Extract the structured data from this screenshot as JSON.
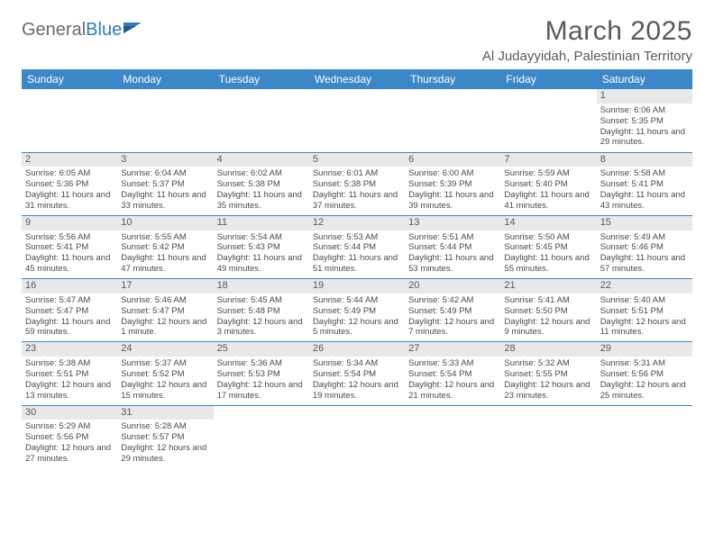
{
  "logo": {
    "text1": "General",
    "text2": "Blue"
  },
  "title": "March 2025",
  "subtitle": "Al Judayyidah, Palestinian Territory",
  "colors": {
    "header_bg": "#3b87c8",
    "header_text": "#ffffff",
    "daynum_bg": "#e9e9e9",
    "border": "#3b87c8",
    "text": "#4a4a4a",
    "logo_gray": "#6b6b6b",
    "logo_blue": "#2d7cc1"
  },
  "weekdays": [
    "Sunday",
    "Monday",
    "Tuesday",
    "Wednesday",
    "Thursday",
    "Friday",
    "Saturday"
  ],
  "cells": [
    [
      null,
      null,
      null,
      null,
      null,
      null,
      {
        "n": "1",
        "sr": "6:06 AM",
        "ss": "5:35 PM",
        "dl": "11 hours and 29 minutes."
      }
    ],
    [
      {
        "n": "2",
        "sr": "6:05 AM",
        "ss": "5:36 PM",
        "dl": "11 hours and 31 minutes."
      },
      {
        "n": "3",
        "sr": "6:04 AM",
        "ss": "5:37 PM",
        "dl": "11 hours and 33 minutes."
      },
      {
        "n": "4",
        "sr": "6:02 AM",
        "ss": "5:38 PM",
        "dl": "11 hours and 35 minutes."
      },
      {
        "n": "5",
        "sr": "6:01 AM",
        "ss": "5:38 PM",
        "dl": "11 hours and 37 minutes."
      },
      {
        "n": "6",
        "sr": "6:00 AM",
        "ss": "5:39 PM",
        "dl": "11 hours and 39 minutes."
      },
      {
        "n": "7",
        "sr": "5:59 AM",
        "ss": "5:40 PM",
        "dl": "11 hours and 41 minutes."
      },
      {
        "n": "8",
        "sr": "5:58 AM",
        "ss": "5:41 PM",
        "dl": "11 hours and 43 minutes."
      }
    ],
    [
      {
        "n": "9",
        "sr": "5:56 AM",
        "ss": "5:41 PM",
        "dl": "11 hours and 45 minutes."
      },
      {
        "n": "10",
        "sr": "5:55 AM",
        "ss": "5:42 PM",
        "dl": "11 hours and 47 minutes."
      },
      {
        "n": "11",
        "sr": "5:54 AM",
        "ss": "5:43 PM",
        "dl": "11 hours and 49 minutes."
      },
      {
        "n": "12",
        "sr": "5:53 AM",
        "ss": "5:44 PM",
        "dl": "11 hours and 51 minutes."
      },
      {
        "n": "13",
        "sr": "5:51 AM",
        "ss": "5:44 PM",
        "dl": "11 hours and 53 minutes."
      },
      {
        "n": "14",
        "sr": "5:50 AM",
        "ss": "5:45 PM",
        "dl": "11 hours and 55 minutes."
      },
      {
        "n": "15",
        "sr": "5:49 AM",
        "ss": "5:46 PM",
        "dl": "11 hours and 57 minutes."
      }
    ],
    [
      {
        "n": "16",
        "sr": "5:47 AM",
        "ss": "5:47 PM",
        "dl": "11 hours and 59 minutes."
      },
      {
        "n": "17",
        "sr": "5:46 AM",
        "ss": "5:47 PM",
        "dl": "12 hours and 1 minute."
      },
      {
        "n": "18",
        "sr": "5:45 AM",
        "ss": "5:48 PM",
        "dl": "12 hours and 3 minutes."
      },
      {
        "n": "19",
        "sr": "5:44 AM",
        "ss": "5:49 PM",
        "dl": "12 hours and 5 minutes."
      },
      {
        "n": "20",
        "sr": "5:42 AM",
        "ss": "5:49 PM",
        "dl": "12 hours and 7 minutes."
      },
      {
        "n": "21",
        "sr": "5:41 AM",
        "ss": "5:50 PM",
        "dl": "12 hours and 9 minutes."
      },
      {
        "n": "22",
        "sr": "5:40 AM",
        "ss": "5:51 PM",
        "dl": "12 hours and 11 minutes."
      }
    ],
    [
      {
        "n": "23",
        "sr": "5:38 AM",
        "ss": "5:51 PM",
        "dl": "12 hours and 13 minutes."
      },
      {
        "n": "24",
        "sr": "5:37 AM",
        "ss": "5:52 PM",
        "dl": "12 hours and 15 minutes."
      },
      {
        "n": "25",
        "sr": "5:36 AM",
        "ss": "5:53 PM",
        "dl": "12 hours and 17 minutes."
      },
      {
        "n": "26",
        "sr": "5:34 AM",
        "ss": "5:54 PM",
        "dl": "12 hours and 19 minutes."
      },
      {
        "n": "27",
        "sr": "5:33 AM",
        "ss": "5:54 PM",
        "dl": "12 hours and 21 minutes."
      },
      {
        "n": "28",
        "sr": "5:32 AM",
        "ss": "5:55 PM",
        "dl": "12 hours and 23 minutes."
      },
      {
        "n": "29",
        "sr": "5:31 AM",
        "ss": "5:56 PM",
        "dl": "12 hours and 25 minutes."
      }
    ],
    [
      {
        "n": "30",
        "sr": "5:29 AM",
        "ss": "5:56 PM",
        "dl": "12 hours and 27 minutes."
      },
      {
        "n": "31",
        "sr": "5:28 AM",
        "ss": "5:57 PM",
        "dl": "12 hours and 29 minutes."
      },
      null,
      null,
      null,
      null,
      null
    ]
  ],
  "labels": {
    "sunrise": "Sunrise:",
    "sunset": "Sunset:",
    "daylight": "Daylight:"
  }
}
